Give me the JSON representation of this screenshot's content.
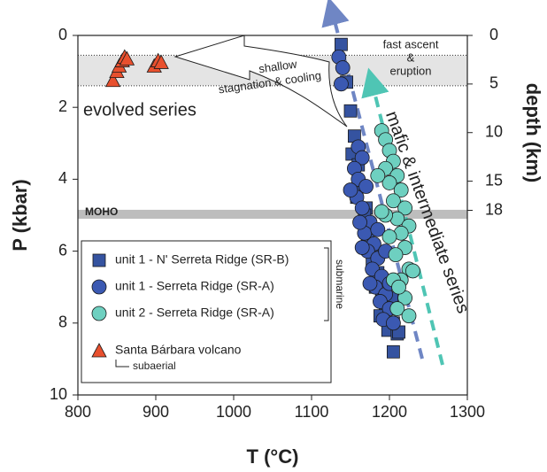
{
  "chart_data": {
    "type": "scatter",
    "x_label": "T (°C)",
    "y_label": "P (kbar)",
    "y2_label": "depth (km)",
    "xlim": [
      800,
      1300
    ],
    "ylim": [
      0,
      10
    ],
    "y_inverted": true,
    "y2lim": [
      0,
      37
    ],
    "xticks": [
      800,
      900,
      1000,
      1100,
      1200,
      1300
    ],
    "yticks": [
      0,
      2,
      4,
      6,
      8,
      10
    ],
    "y2ticks": [
      0,
      5,
      10,
      15,
      18
    ],
    "bands": [
      [
        0.55,
        1.4
      ],
      [
        4.85,
        5.1
      ]
    ],
    "band_colors": [
      "#e4e4e4",
      "#bdbdbd"
    ],
    "legend": "lower left",
    "series": [
      {
        "name": "unit 1 - N' Serreta Ridge (SR-B)",
        "color": "#3553a0",
        "marker": "square",
        "x": [
          1138,
          1145,
          1150,
          1155,
          1152,
          1160,
          1165,
          1158,
          1170,
          1168,
          1175,
          1172,
          1180,
          1178,
          1185,
          1182,
          1190,
          1195,
          1188,
          1200,
          1205,
          1198,
          1210,
          1212,
          1203,
          1205
        ],
        "values": [
          0.25,
          1.3,
          2.1,
          2.8,
          3.3,
          3.6,
          4.2,
          4.5,
          4.8,
          5.0,
          5.4,
          5.7,
          6.0,
          6.3,
          6.6,
          7.0,
          7.2,
          7.5,
          7.8,
          7.6,
          8.0,
          8.2,
          8.3,
          8.25,
          7.3,
          8.8
        ]
      },
      {
        "name": "unit 1 - Serreta Ridge (SR-A)",
        "color": "#3b59b2",
        "marker": "circle",
        "x": [
          1135,
          1140,
          1138,
          1160,
          1165,
          1155,
          1160,
          1170,
          1158,
          1165,
          1175,
          1168,
          1180,
          1172,
          1185,
          1178,
          1190,
          1182,
          1195,
          1188,
          1200,
          1192,
          1205,
          1175,
          1165,
          1185,
          1195,
          1200,
          1150,
          1162
        ],
        "values": [
          0.6,
          0.9,
          1.35,
          3.1,
          3.4,
          3.7,
          4.0,
          4.2,
          4.5,
          4.8,
          5.2,
          5.5,
          5.8,
          6.0,
          6.2,
          6.5,
          6.7,
          7.0,
          7.2,
          7.4,
          7.6,
          7.9,
          8.0,
          6.9,
          5.9,
          5.4,
          6.0,
          6.9,
          4.3,
          5.2
        ]
      },
      {
        "name": "unit 2 - Serreta Ridge (SR-A)",
        "color": "#6ed0c0",
        "marker": "circle",
        "x": [
          1190,
          1195,
          1200,
          1205,
          1195,
          1210,
          1200,
          1215,
          1205,
          1220,
          1210,
          1225,
          1215,
          1200,
          1220,
          1208,
          1225,
          1215,
          1220,
          1210,
          1225,
          1195,
          1205,
          1185,
          1212,
          1230,
          1190
        ],
        "values": [
          2.65,
          2.9,
          3.2,
          3.5,
          3.7,
          3.9,
          4.1,
          4.3,
          4.6,
          4.8,
          5.1,
          5.3,
          5.5,
          5.6,
          5.9,
          6.1,
          6.5,
          6.8,
          7.3,
          7.6,
          7.8,
          5.0,
          6.8,
          3.9,
          7.0,
          6.55,
          4.9
        ]
      },
      {
        "name": "Santa Bárbara volcano",
        "color": "#e8502e",
        "marker": "triangle",
        "x": [
          845,
          850,
          853,
          857,
          860,
          863,
          898,
          903,
          907
        ],
        "values": [
          1.25,
          1.0,
          0.85,
          0.7,
          0.6,
          0.65,
          0.85,
          0.7,
          0.75
        ]
      }
    ],
    "annotations": {
      "shallow": "shallow",
      "stagnation": "stagnation & cooling",
      "fast_ascent": "fast ascent",
      "amp": "&",
      "eruption": "eruption",
      "evolved": "evolved series",
      "moho": "MOHO",
      "mafic": "mafic & intermediate series",
      "submarine": "submarine",
      "subaerial": "subaerial"
    }
  }
}
